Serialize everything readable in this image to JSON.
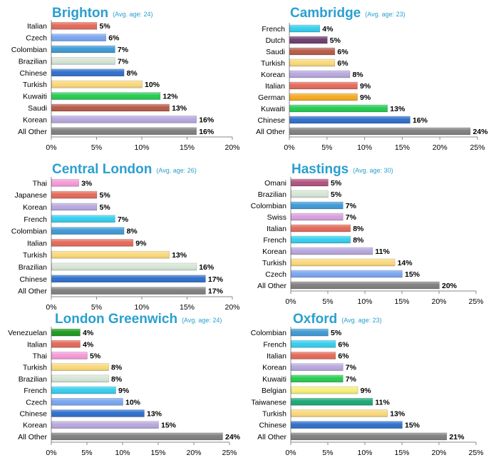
{
  "chart_data": [
    {
      "type": "bar",
      "title": "Brighton",
      "subtitle": "(Avg. age: 24)",
      "xlim": [
        0,
        20
      ],
      "ticks": [
        "0%",
        "5%",
        "10%",
        "15%",
        "20%"
      ],
      "categories": [
        "Italian",
        "Czech",
        "Colombian",
        "Brazilian",
        "Chinese",
        "Turkish",
        "Kuwaiti",
        "Saudi",
        "Korean",
        "All Other"
      ],
      "values": [
        5,
        6,
        7,
        7,
        8,
        10,
        12,
        13,
        16,
        16
      ],
      "labels": [
        "5%",
        "6%",
        "7%",
        "7%",
        "8%",
        "10%",
        "12%",
        "13%",
        "16%",
        "16%"
      ],
      "colors": [
        "#e46a5a",
        "#7aa6f2",
        "#3f9ad6",
        "#d6e6d6",
        "#2f6fcc",
        "#fad97a",
        "#26cc52",
        "#b85b4a",
        "#b8a8df",
        "#808080"
      ]
    },
    {
      "type": "bar",
      "title": "Cambridge",
      "subtitle": "(Avg. age: 23)",
      "xlim": [
        0,
        25
      ],
      "ticks": [
        "0%",
        "5%",
        "10%",
        "15%",
        "20%",
        "25%"
      ],
      "categories": [
        "French",
        "Dutch",
        "Saudi",
        "Turkish",
        "Korean",
        "Italian",
        "German",
        "Kuwaiti",
        "Chinese",
        "All Other"
      ],
      "values": [
        4,
        5,
        6,
        6,
        8,
        9,
        9,
        13,
        16,
        24
      ],
      "labels": [
        "4%",
        "5%",
        "6%",
        "6%",
        "8%",
        "9%",
        "9%",
        "13%",
        "16%",
        "24%"
      ],
      "colors": [
        "#35cfef",
        "#6e3e70",
        "#b85b4a",
        "#fad97a",
        "#b8a8df",
        "#e46a5a",
        "#f6aa22",
        "#26cc52",
        "#2f6fcc",
        "#808080"
      ]
    },
    {
      "type": "bar",
      "title": "Central London",
      "subtitle": "(Avg. age: 26)",
      "xlim": [
        0,
        20
      ],
      "ticks": [
        "0%",
        "5%",
        "10%",
        "15%",
        "20%"
      ],
      "categories": [
        "Thai",
        "Japanese",
        "Korean",
        "French",
        "Colombian",
        "Italian",
        "Turkish",
        "Brazilian",
        "Chinese",
        "All Other"
      ],
      "values": [
        3,
        5,
        5,
        7,
        8,
        9,
        13,
        16,
        17,
        17
      ],
      "labels": [
        "3%",
        "5%",
        "5%",
        "7%",
        "8%",
        "9%",
        "13%",
        "16%",
        "17%",
        "17%"
      ],
      "colors": [
        "#f59ad8",
        "#e46a5a",
        "#b8a8df",
        "#35cfef",
        "#3f9ad6",
        "#e46a5a",
        "#fad97a",
        "#d6e6d6",
        "#2f6fcc",
        "#808080"
      ]
    },
    {
      "type": "bar",
      "title": "Hastings",
      "subtitle": "(Avg. age: 30)",
      "xlim": [
        0,
        25
      ],
      "ticks": [
        "0%",
        "5%",
        "10%",
        "15%",
        "20%",
        "25%"
      ],
      "categories": [
        "Omani",
        "Brazilian",
        "Colombian",
        "Swiss",
        "Italian",
        "French",
        "Korean",
        "Turkish",
        "Czech",
        "All Other"
      ],
      "values": [
        5,
        5,
        7,
        7,
        8,
        8,
        11,
        14,
        15,
        20
      ],
      "labels": [
        "5%",
        "5%",
        "7%",
        "7%",
        "8%",
        "8%",
        "11%",
        "14%",
        "15%",
        "20%"
      ],
      "colors": [
        "#b0527e",
        "#d6e6d6",
        "#3f9ad6",
        "#d8a0dc",
        "#e46a5a",
        "#35cfef",
        "#b8a8df",
        "#fad97a",
        "#7aa6f2",
        "#808080"
      ]
    },
    {
      "type": "bar",
      "title": "London Greenwich",
      "subtitle": "(Avg. age: 24)",
      "xlim": [
        0,
        25
      ],
      "ticks": [
        "0%",
        "5%",
        "10%",
        "15%",
        "20%",
        "25%"
      ],
      "categories": [
        "Venezuelan",
        "Italian",
        "Thai",
        "Turkish",
        "Brazilian",
        "French",
        "Czech",
        "Chinese",
        "Korean",
        "All Other"
      ],
      "values": [
        4,
        4,
        5,
        8,
        8,
        9,
        10,
        13,
        15,
        24
      ],
      "labels": [
        "4%",
        "4%",
        "5%",
        "8%",
        "8%",
        "9%",
        "10%",
        "13%",
        "15%",
        "24%"
      ],
      "colors": [
        "#1f9a1f",
        "#e46a5a",
        "#f59ad8",
        "#fad97a",
        "#d6e6d6",
        "#35cfef",
        "#7aa6f2",
        "#2f6fcc",
        "#b8a8df",
        "#808080"
      ]
    },
    {
      "type": "bar",
      "title": "Oxford",
      "subtitle": "(Avg. age: 23)",
      "xlim": [
        0,
        25
      ],
      "ticks": [
        "0%",
        "5%",
        "10%",
        "15%",
        "20%",
        "25%"
      ],
      "categories": [
        "Colombian",
        "French",
        "Italian",
        "Korean",
        "Kuwaiti",
        "Belgian",
        "Taiwanese",
        "Turkish",
        "Chinese",
        "All Other"
      ],
      "values": [
        5,
        6,
        6,
        7,
        7,
        9,
        11,
        13,
        15,
        21
      ],
      "labels": [
        "5%",
        "6%",
        "6%",
        "7%",
        "7%",
        "9%",
        "11%",
        "13%",
        "15%",
        "21%"
      ],
      "colors": [
        "#3f9ad6",
        "#35cfef",
        "#e46a5a",
        "#b8a8df",
        "#26cc52",
        "#f6f07a",
        "#1aa876",
        "#fad97a",
        "#2f6fcc",
        "#808080"
      ]
    }
  ]
}
